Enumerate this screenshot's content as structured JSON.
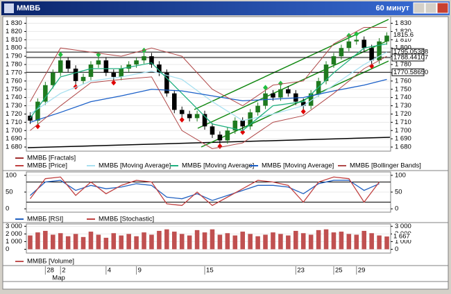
{
  "window": {
    "title": "ММВБ",
    "timeframe": "60 минут"
  },
  "chart_data": [
    {
      "type": "candlestick",
      "xlim": [
        -0.5,
        47.5
      ],
      "ylim": [
        1675,
        1838
      ],
      "yticks": [
        {
          "value": 1680,
          "label": "1 680"
        },
        {
          "value": 1690,
          "label": "1 690"
        },
        {
          "value": 1700,
          "label": "1 700"
        },
        {
          "value": 1710,
          "label": "1 710"
        },
        {
          "value": 1720,
          "label": "1 720"
        },
        {
          "value": 1730,
          "label": "1 730"
        },
        {
          "value": 1740,
          "label": "1 740"
        },
        {
          "value": 1750,
          "label": "1 750"
        },
        {
          "value": 1760,
          "label": "1 760"
        },
        {
          "value": 1770,
          "label": "1 770"
        },
        {
          "value": 1780,
          "label": "1 780"
        },
        {
          "value": 1790,
          "label": "1 790"
        },
        {
          "value": 1800,
          "label": "1 800"
        },
        {
          "value": 1810,
          "label": "1 810"
        },
        {
          "value": 1820,
          "label": "1 820"
        },
        {
          "value": 1830,
          "label": "1 830"
        }
      ],
      "levels": [
        {
          "value": 1795.05388,
          "label": "1795.05388"
        },
        {
          "value": 1788.44107,
          "label": "1788.44107"
        },
        {
          "value": 1770.5865,
          "label": "1770.58650"
        }
      ],
      "last_value": 1815.6,
      "series": [
        {
          "name": "ММВБ [Fractals]",
          "color": "#a03030",
          "up_color": "#20c040",
          "down_color": "#e00000",
          "up_x": [
            4,
            9,
            15,
            31,
            33,
            42,
            43
          ],
          "up_values": [
            1792,
            1792,
            1797,
            1752,
            1757,
            1815,
            1817
          ],
          "down_x": [
            1,
            6,
            11,
            20,
            25,
            28,
            36,
            45
          ],
          "down_values": [
            1705,
            1753,
            1758,
            1713,
            1681,
            1698,
            1723,
            1778
          ]
        },
        {
          "name": "ММВБ [Price]",
          "color": "#c04040",
          "up_color": "#1f7a1f",
          "down_color": "#000000",
          "open": [
            1718,
            1712,
            1735,
            1755,
            1770,
            1785,
            1775,
            1760,
            1765,
            1780,
            1785,
            1770,
            1765,
            1775,
            1780,
            1785,
            1790,
            1780,
            1770,
            1745,
            1725,
            1720,
            1715,
            1720,
            1705,
            1695,
            1688,
            1700,
            1712,
            1705,
            1722,
            1730,
            1745,
            1740,
            1750,
            1745,
            1735,
            1730,
            1745,
            1760,
            1780,
            1790,
            1800,
            1808,
            1810,
            1800,
            1785,
            1808
          ],
          "high": [
            1722,
            1739,
            1759,
            1774,
            1789,
            1789,
            1779,
            1769,
            1784,
            1789,
            1789,
            1774,
            1779,
            1784,
            1789,
            1794,
            1794,
            1784,
            1774,
            1749,
            1729,
            1724,
            1724,
            1724,
            1709,
            1699,
            1704,
            1716,
            1716,
            1726,
            1734,
            1749,
            1749,
            1754,
            1754,
            1749,
            1739,
            1749,
            1764,
            1784,
            1794,
            1804,
            1812,
            1814,
            1814,
            1804,
            1812,
            1819
          ],
          "low": [
            1708,
            1708,
            1731,
            1751,
            1766,
            1771,
            1756,
            1756,
            1761,
            1776,
            1766,
            1761,
            1761,
            1771,
            1776,
            1781,
            1776,
            1766,
            1741,
            1721,
            1716,
            1711,
            1711,
            1701,
            1691,
            1684,
            1684,
            1696,
            1701,
            1701,
            1718,
            1726,
            1736,
            1736,
            1741,
            1731,
            1726,
            1726,
            1741,
            1756,
            1776,
            1786,
            1796,
            1804,
            1796,
            1781,
            1781,
            1804
          ],
          "close": [
            1712,
            1735,
            1755,
            1770,
            1785,
            1775,
            1760,
            1765,
            1780,
            1785,
            1770,
            1765,
            1775,
            1780,
            1785,
            1790,
            1780,
            1770,
            1745,
            1725,
            1720,
            1715,
            1720,
            1705,
            1695,
            1688,
            1700,
            1712,
            1705,
            1722,
            1730,
            1745,
            1740,
            1750,
            1745,
            1735,
            1730,
            1745,
            1760,
            1780,
            1790,
            1800,
            1808,
            1810,
            1800,
            1785,
            1808,
            1815
          ]
        },
        {
          "name": "ММВБ [Moving Average]",
          "color": "#a8e0f0",
          "x": [
            0,
            4,
            8,
            12,
            16,
            20,
            24,
            28,
            32,
            36,
            40,
            44,
            47
          ],
          "values": [
            1720,
            1745,
            1760,
            1765,
            1772,
            1762,
            1735,
            1712,
            1720,
            1730,
            1755,
            1780,
            1795
          ]
        },
        {
          "name": "ММВБ [Moving Average]",
          "color": "#20b080",
          "x": [
            0,
            4,
            8,
            12,
            16,
            20,
            24,
            28,
            32,
            36,
            40,
            44,
            47
          ],
          "values": [
            1715,
            1765,
            1775,
            1775,
            1782,
            1745,
            1708,
            1700,
            1730,
            1735,
            1770,
            1800,
            1805
          ]
        },
        {
          "name": "ММВБ [Moving Average]",
          "color": "#1a5fc8",
          "x": [
            0,
            4,
            8,
            12,
            16,
            20,
            24,
            28,
            32,
            36,
            40,
            44,
            47
          ],
          "values": [
            1710,
            1722,
            1735,
            1742,
            1750,
            1748,
            1742,
            1736,
            1738,
            1740,
            1748,
            1755,
            1762
          ]
        },
        {
          "name": "ММВБ [Bollinger Bands]",
          "color": "#b04848",
          "x": [
            0,
            4,
            8,
            12,
            16,
            20,
            24,
            28,
            32,
            36,
            40,
            44,
            47
          ],
          "upper": [
            1735,
            1800,
            1795,
            1790,
            1800,
            1790,
            1750,
            1730,
            1755,
            1760,
            1805,
            1825,
            1825
          ],
          "lower": [
            1700,
            1730,
            1758,
            1762,
            1765,
            1700,
            1678,
            1685,
            1710,
            1718,
            1745,
            1775,
            1790
          ]
        }
      ]
    },
    {
      "type": "line",
      "xlim": [
        -0.5,
        47.5
      ],
      "ylim": [
        -10,
        110
      ],
      "yticks": [
        0,
        50,
        100
      ],
      "levels": [
        20,
        80
      ],
      "series": [
        {
          "name": "ММВБ [RSI]",
          "color": "#2060c0",
          "x": [
            0,
            2,
            4,
            6,
            8,
            10,
            12,
            14,
            16,
            18,
            20,
            22,
            24,
            26,
            28,
            30,
            32,
            34,
            36,
            38,
            40,
            42,
            44,
            46
          ],
          "values": [
            40,
            80,
            85,
            55,
            70,
            60,
            65,
            75,
            70,
            35,
            30,
            45,
            25,
            40,
            55,
            70,
            70,
            65,
            45,
            75,
            85,
            85,
            55,
            75
          ]
        },
        {
          "name": "ММВБ [Stochastic]",
          "color": "#c04040",
          "x": [
            0,
            2,
            4,
            6,
            8,
            10,
            12,
            14,
            16,
            18,
            20,
            22,
            24,
            26,
            28,
            30,
            32,
            34,
            36,
            38,
            40,
            42,
            44,
            46
          ],
          "values": [
            30,
            90,
            95,
            40,
            80,
            45,
            70,
            85,
            80,
            15,
            10,
            50,
            10,
            35,
            60,
            85,
            80,
            70,
            20,
            80,
            95,
            90,
            20,
            80
          ]
        }
      ]
    },
    {
      "type": "bar",
      "xlim": [
        -0.5,
        47.5
      ],
      "ylim": [
        -500,
        3300
      ],
      "yticks": [
        0,
        {
          "value": 1000,
          "label": "1 000"
        },
        {
          "value": 2000,
          "label": "2 000"
        },
        {
          "value": 3000,
          "label": "3 000"
        }
      ],
      "last_value": {
        "value": 1667,
        "label": "1 667"
      },
      "xticks": [
        {
          "value": 2,
          "label": "28"
        },
        {
          "value": 4,
          "label": "2"
        },
        {
          "value": 10,
          "label": "4"
        },
        {
          "value": 14,
          "label": "9"
        },
        {
          "value": 23,
          "label": "15"
        },
        {
          "value": 35,
          "label": "23"
        },
        {
          "value": 40,
          "label": "25"
        },
        {
          "value": 43,
          "label": "29"
        }
      ],
      "x_sublabel": "Мар",
      "series": [
        {
          "name": "ММВБ [Volume]",
          "color": "#c05050",
          "values": [
            1800,
            2200,
            2400,
            1900,
            2100,
            1700,
            2000,
            1600,
            2300,
            1900,
            1500,
            2100,
            1800,
            2000,
            1700,
            2200,
            1900,
            2400,
            2600,
            2300,
            2000,
            1800,
            2500,
            2200,
            2600,
            1900,
            2100,
            1800,
            2300,
            2000,
            1700,
            1900,
            2200,
            2000,
            1800,
            2400,
            2100,
            1900,
            2500,
            2600,
            2200,
            2300,
            2000,
            1900,
            2400,
            2100,
            1800,
            1667
          ]
        }
      ]
    }
  ]
}
